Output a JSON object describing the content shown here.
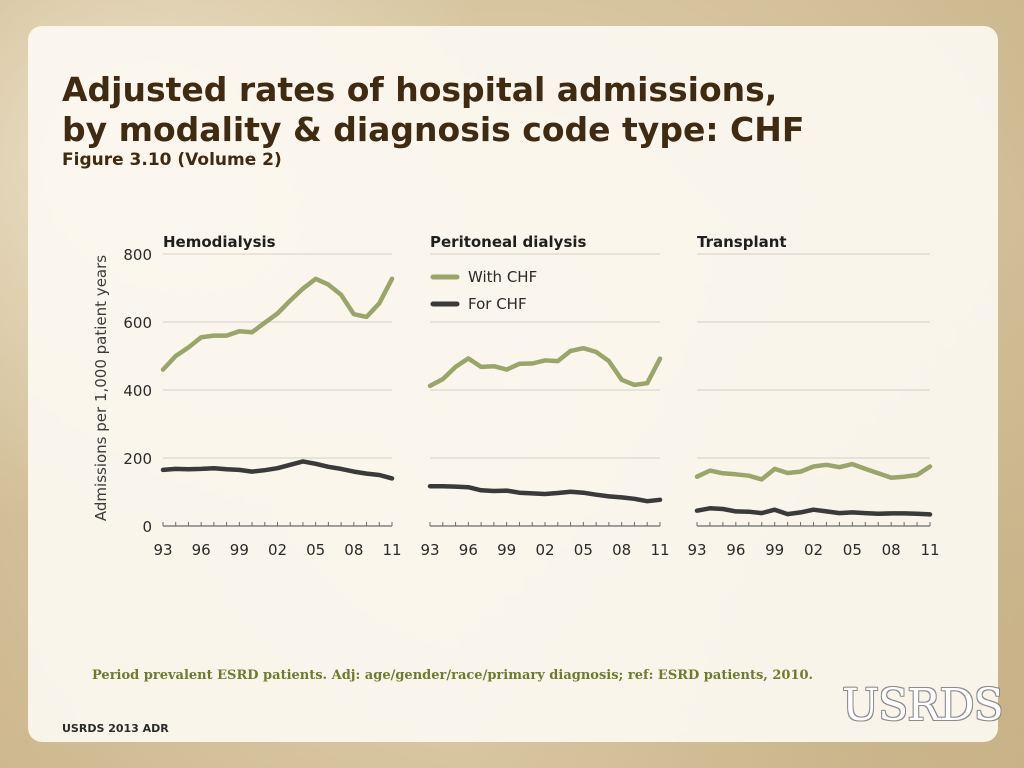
{
  "slide": {
    "title_line1": "Adjusted rates of hospital admissions,",
    "title_line2": "by modality & diagnosis code type: CHF",
    "subtitle": "Figure 3.10 (Volume 2)",
    "note": "Period prevalent ESRD patients. Adj: age/gender/race/primary diagnosis; ref: ESRD patients, 2010.",
    "footer": "USRDS 2013 ADR",
    "logo_text": "USRDS"
  },
  "colors": {
    "with_chf": "#9aa56a",
    "for_chf": "#3a3a3a",
    "title": "#3f2a12",
    "note": "#6e7a2e"
  },
  "chart_data": {
    "type": "line",
    "ylabel": "Admissions per 1,000 patient years",
    "ylim": [
      0,
      800
    ],
    "yticks": [
      0,
      200,
      400,
      600,
      800
    ],
    "x": [
      1993,
      1994,
      1995,
      1996,
      1997,
      1998,
      1999,
      2000,
      2001,
      2002,
      2003,
      2004,
      2005,
      2006,
      2007,
      2008,
      2009,
      2010,
      2011
    ],
    "xtick_labels": [
      "93",
      "96",
      "99",
      "02",
      "05",
      "08",
      "11"
    ],
    "xtick_years": [
      1993,
      1996,
      1999,
      2002,
      2005,
      2008,
      2011
    ],
    "grid": true,
    "legend": {
      "placement": "top, in Peritoneal dialysis panel",
      "entries": [
        "With CHF",
        "For CHF"
      ]
    },
    "panels": [
      {
        "title": "Hemodialysis",
        "series": [
          {
            "name": "With CHF",
            "values": [
              460,
              500,
              525,
              555,
              560,
              560,
              573,
              570,
              598,
              625,
              663,
              698,
              727,
              710,
              680,
              623,
              615,
              655,
              727
            ]
          },
          {
            "name": "For CHF",
            "values": [
              165,
              168,
              167,
              168,
              170,
              167,
              165,
              160,
              164,
              170,
              180,
              190,
              183,
              174,
              168,
              160,
              154,
              150,
              140
            ]
          }
        ]
      },
      {
        "title": "Peritoneal dialysis",
        "series": [
          {
            "name": "With CHF",
            "values": [
              412,
              432,
              468,
              493,
              468,
              470,
              460,
              477,
              478,
              487,
              485,
              515,
              523,
              512,
              485,
              430,
              415,
              420,
              492
            ]
          },
          {
            "name": "For CHF",
            "values": [
              117,
              117,
              116,
              114,
              105,
              103,
              104,
              98,
              96,
              94,
              97,
              101,
              98,
              92,
              87,
              84,
              80,
              73,
              77
            ]
          }
        ]
      },
      {
        "title": "Transplant",
        "series": [
          {
            "name": "With CHF",
            "values": [
              145,
              163,
              155,
              152,
              148,
              137,
              168,
              156,
              160,
              175,
              180,
              173,
              182,
              168,
              155,
              142,
              145,
              150,
              175
            ]
          },
          {
            "name": "For CHF",
            "values": [
              45,
              52,
              50,
              43,
              42,
              38,
              48,
              35,
              40,
              48,
              43,
              38,
              40,
              38,
              36,
              37,
              37,
              36,
              34
            ]
          }
        ]
      }
    ]
  }
}
